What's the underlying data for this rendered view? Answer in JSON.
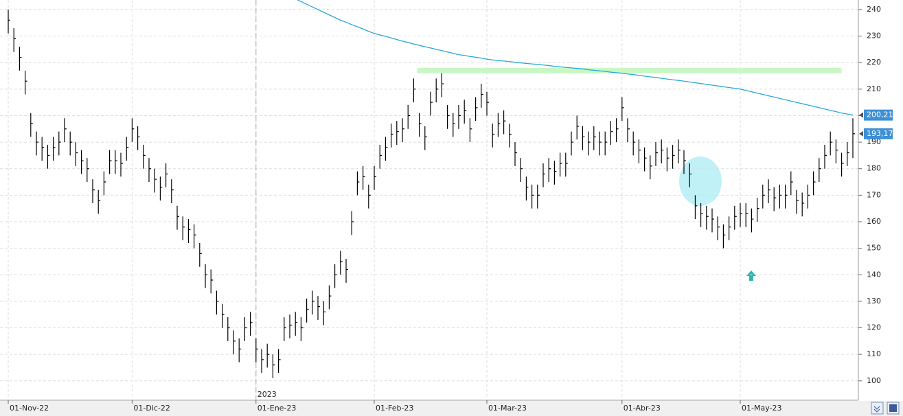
{
  "chart_data": {
    "type": "ohlc",
    "categories": [
      "01-Nov-22",
      null,
      null,
      null,
      null,
      null,
      null,
      null,
      null,
      null,
      null,
      null,
      null,
      null,
      null,
      null,
      null,
      null,
      null,
      null,
      null,
      null,
      "01-Dic-22",
      null,
      null,
      null,
      null,
      null,
      null,
      null,
      null,
      null,
      null,
      null,
      null,
      null,
      null,
      null,
      null,
      null,
      null,
      null,
      null,
      null,
      "01-Ene-23",
      null,
      null,
      null,
      null,
      null,
      null,
      null,
      null,
      null,
      null,
      null,
      null,
      null,
      null,
      null,
      null,
      null,
      null,
      null,
      null,
      "01-Feb-23",
      null,
      null,
      null,
      null,
      null,
      null,
      null,
      null,
      null,
      null,
      null,
      null,
      null,
      null,
      null,
      null,
      null,
      null,
      null,
      "01-Mar-23",
      null,
      null,
      null,
      null,
      null,
      null,
      null,
      null,
      null,
      null,
      null,
      null,
      null,
      null,
      null,
      null,
      null,
      null,
      null,
      null,
      null,
      null,
      null,
      "01-Abr-23",
      null,
      null,
      null,
      null,
      null,
      null,
      null,
      null,
      null,
      null,
      null,
      null,
      null,
      null,
      null,
      null,
      null,
      null,
      null,
      null,
      "01-May-23",
      null,
      null,
      null,
      null,
      null,
      null,
      null,
      null,
      null,
      null,
      null,
      null,
      null,
      null,
      null,
      null,
      null,
      null,
      null,
      null
    ],
    "year_marker": {
      "label": "2023",
      "category": 44
    },
    "high": [
      240,
      233,
      226,
      217,
      201,
      194,
      192,
      189,
      192,
      194,
      199,
      194,
      190,
      187,
      184,
      176,
      172,
      179,
      187,
      187,
      186,
      192,
      199,
      196,
      189,
      184,
      180,
      177,
      182,
      176,
      166,
      162,
      161,
      159,
      152,
      144,
      142,
      134,
      129,
      124,
      119,
      116,
      124,
      126,
      116,
      112,
      114,
      110,
      112,
      124,
      125,
      126,
      124,
      131,
      134,
      132,
      130,
      136,
      144,
      149,
      146,
      164,
      179,
      181,
      174,
      181,
      189,
      192,
      197,
      198,
      199,
      204,
      214,
      201,
      196,
      209,
      214,
      216,
      204,
      201,
      204,
      206,
      199,
      207,
      212,
      209,
      197,
      201,
      202,
      197,
      190,
      184,
      177,
      174,
      174,
      182,
      184,
      183,
      186,
      186,
      194,
      200,
      196,
      194,
      196,
      194,
      194,
      198,
      199,
      207,
      199,
      194,
      191,
      188,
      185,
      190,
      191,
      188,
      189,
      191,
      187,
      182,
      170,
      167,
      166,
      165,
      162,
      159,
      162,
      166,
      167,
      167,
      165,
      169,
      174,
      176,
      173,
      174,
      174,
      179,
      172,
      171,
      174,
      179,
      184,
      189,
      194,
      191,
      186,
      190,
      199
    ],
    "low": [
      231,
      224,
      217,
      208,
      192,
      185,
      183,
      180,
      183,
      185,
      190,
      185,
      181,
      178,
      175,
      167,
      163,
      170,
      178,
      178,
      177,
      183,
      190,
      187,
      180,
      175,
      171,
      168,
      173,
      167,
      157,
      153,
      152,
      150,
      143,
      135,
      133,
      125,
      120,
      115,
      110,
      107,
      115,
      117,
      107,
      103,
      105,
      101,
      103,
      115,
      116,
      117,
      115,
      122,
      125,
      123,
      121,
      127,
      135,
      140,
      137,
      155,
      170,
      172,
      165,
      172,
      180,
      183,
      188,
      189,
      190,
      195,
      205,
      192,
      187,
      200,
      205,
      207,
      195,
      192,
      195,
      197,
      190,
      198,
      203,
      200,
      188,
      192,
      193,
      188,
      181,
      175,
      168,
      165,
      165,
      173,
      175,
      174,
      177,
      177,
      185,
      191,
      187,
      185,
      187,
      185,
      185,
      189,
      190,
      198,
      190,
      185,
      182,
      179,
      176,
      181,
      182,
      179,
      180,
      182,
      178,
      173,
      161,
      158,
      157,
      156,
      153,
      150,
      153,
      157,
      158,
      158,
      156,
      160,
      165,
      167,
      164,
      165,
      165,
      170,
      163,
      162,
      165,
      170,
      175,
      180,
      185,
      182,
      177,
      181,
      184
    ],
    "close": [
      236,
      229,
      222,
      213,
      197,
      190,
      188,
      185,
      188,
      190,
      195,
      190,
      186,
      183,
      180,
      172,
      168,
      175,
      183,
      183,
      182,
      188,
      195,
      192,
      185,
      180,
      176,
      173,
      178,
      172,
      162,
      158,
      157,
      155,
      148,
      140,
      138,
      130,
      125,
      120,
      115,
      112,
      120,
      122,
      112,
      108,
      110,
      106,
      108,
      120,
      121,
      122,
      120,
      127,
      130,
      128,
      126,
      132,
      140,
      145,
      142,
      160,
      175,
      177,
      170,
      177,
      185,
      188,
      193,
      194,
      195,
      200,
      210,
      197,
      192,
      205,
      210,
      212,
      200,
      197,
      200,
      202,
      195,
      203,
      208,
      205,
      193,
      197,
      198,
      193,
      186,
      180,
      173,
      170,
      170,
      178,
      180,
      179,
      182,
      182,
      190,
      196,
      192,
      190,
      192,
      190,
      190,
      194,
      195,
      203,
      195,
      190,
      187,
      184,
      181,
      186,
      187,
      184,
      185,
      187,
      183,
      178,
      166,
      163,
      162,
      161,
      158,
      155,
      158,
      162,
      163,
      163,
      161,
      165,
      170,
      172,
      169,
      170,
      170,
      175,
      168,
      167,
      170,
      175,
      180,
      185,
      190,
      187,
      182,
      186,
      193.17
    ],
    "color": "#000000",
    "moving_average": {
      "color": "#29a8d8",
      "values": [
        null,
        null,
        null,
        null,
        null,
        null,
        null,
        null,
        null,
        null,
        null,
        null,
        null,
        null,
        null,
        null,
        null,
        null,
        null,
        null,
        null,
        null,
        null,
        null,
        null,
        null,
        null,
        null,
        null,
        null,
        null,
        null,
        null,
        null,
        null,
        null,
        null,
        null,
        null,
        null,
        null,
        null,
        null,
        null,
        null,
        null,
        null,
        null,
        null,
        null,
        null,
        244,
        243,
        242,
        241,
        240,
        239,
        238,
        237,
        236,
        235.2,
        234.3,
        233.5,
        232.7,
        231.8,
        231,
        230.4,
        229.9,
        229.3,
        228.7,
        228.1,
        227.6,
        227,
        226.5,
        226,
        225.5,
        225,
        224.5,
        224,
        223.5,
        223,
        222.7,
        222.3,
        222,
        221.7,
        221.3,
        221,
        220.8,
        220.6,
        220.4,
        220.1,
        219.9,
        219.7,
        219.5,
        219.3,
        219.1,
        218.9,
        218.6,
        218.4,
        218.2,
        218,
        217.8,
        217.6,
        217.3,
        217.1,
        216.9,
        216.7,
        216.4,
        216.2,
        216,
        215.7,
        215.5,
        215.2,
        214.9,
        214.6,
        214.4,
        214.1,
        213.8,
        213.5,
        213.3,
        213,
        212.7,
        212.4,
        212.1,
        211.8,
        211.5,
        211.2,
        210.9,
        210.6,
        210.3,
        210,
        209.5,
        209,
        208.5,
        208,
        207.5,
        207,
        206.5,
        206,
        205.5,
        205,
        204.5,
        204,
        203.5,
        203,
        202.5,
        202,
        201.5,
        201,
        200.6,
        200.21
      ]
    },
    "last_labels": [
      {
        "value": 200.21,
        "label": "200,21"
      },
      {
        "value": 193.17,
        "label": "193,17"
      }
    ],
    "band": {
      "value": 217,
      "color": "#c8f7c5"
    },
    "ylim": [
      92.7,
      243.6
    ],
    "yticks": [
      100,
      110,
      120,
      130,
      140,
      150,
      160,
      170,
      180,
      190,
      200,
      210,
      220,
      230,
      240
    ],
    "grid": true
  }
}
